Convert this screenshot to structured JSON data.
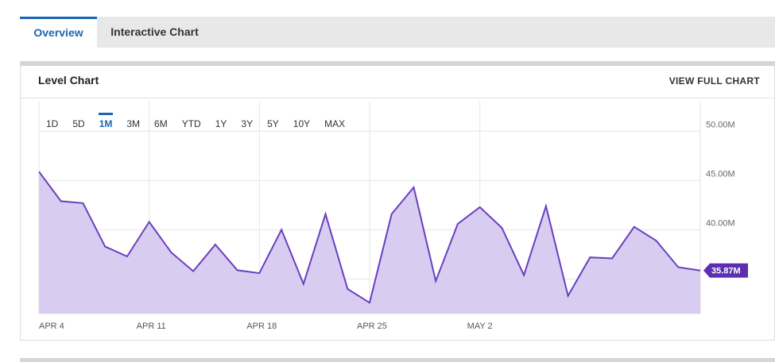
{
  "tabs": [
    {
      "label": "Overview",
      "active": true
    },
    {
      "label": "Interactive Chart",
      "active": false
    }
  ],
  "panel": {
    "title": "Level Chart",
    "view_full_label": "VIEW FULL CHART"
  },
  "ranges": [
    {
      "label": "1D",
      "active": false
    },
    {
      "label": "5D",
      "active": false
    },
    {
      "label": "1M",
      "active": true
    },
    {
      "label": "3M",
      "active": false
    },
    {
      "label": "6M",
      "active": false
    },
    {
      "label": "YTD",
      "active": false
    },
    {
      "label": "1Y",
      "active": false
    },
    {
      "label": "3Y",
      "active": false
    },
    {
      "label": "5Y",
      "active": false
    },
    {
      "label": "10Y",
      "active": false
    },
    {
      "label": "MAX",
      "active": false
    }
  ],
  "colors": {
    "accent": "#1a66b3",
    "line": "#6a3fbf",
    "fill": "#d9ccf1",
    "badge": "#5b2fb0"
  },
  "chart_data": {
    "type": "area",
    "x_ticks": [
      "APR 4",
      "APR 11",
      "APR 18",
      "APR 25",
      "MAY 2"
    ],
    "y_ticks": [
      "50.00M",
      "45.00M",
      "40.00M"
    ],
    "y_tick_values": [
      50,
      45,
      40
    ],
    "ylim": [
      31.5,
      53
    ],
    "unit": "M",
    "values": [
      45.9,
      42.9,
      42.7,
      38.3,
      37.3,
      40.8,
      37.7,
      35.8,
      38.5,
      35.9,
      35.6,
      40.0,
      34.5,
      41.6,
      34.0,
      32.6,
      41.6,
      44.3,
      34.8,
      40.6,
      42.3,
      40.2,
      35.4,
      42.4,
      33.3,
      37.2,
      37.1,
      40.3,
      38.9,
      36.2,
      35.87
    ],
    "last_value_label": "35.87M",
    "grid": true
  }
}
